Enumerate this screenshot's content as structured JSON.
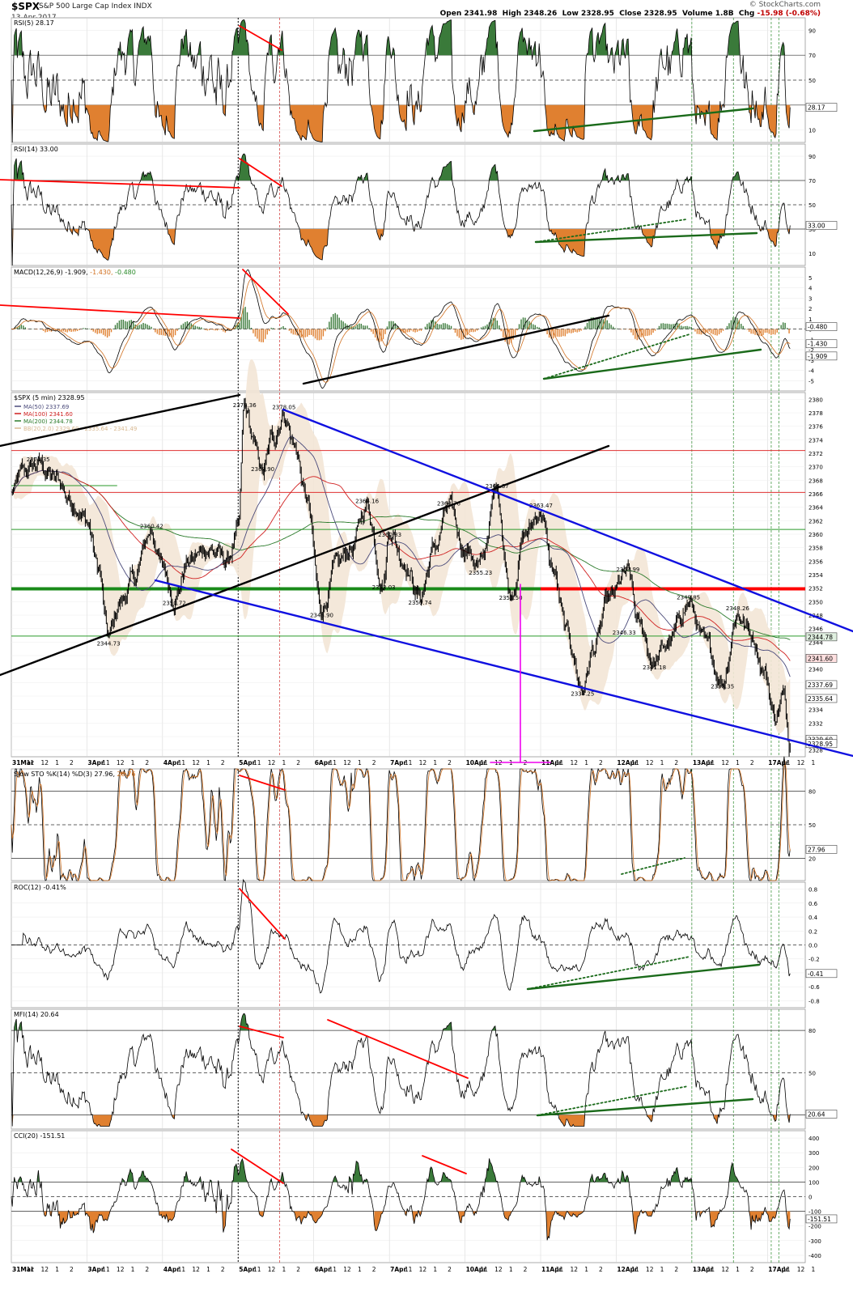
{
  "header": {
    "symbol": "$SPX",
    "name": "S&P 500 Large Cap Index  INDX",
    "date": "13-Apr-2017",
    "brand": "© StockCharts.com",
    "quote_open_label": "Open",
    "quote_open": "2341.98",
    "quote_high_label": "High",
    "quote_high": "2348.26",
    "quote_low_label": "Low",
    "quote_low": "2328.95",
    "quote_close_label": "Close",
    "quote_close": "2328.95",
    "quote_volume_label": "Volume",
    "quote_volume": "1.8B",
    "quote_chg_label": "Chg",
    "quote_chg": "-15.98 (-0.68%)"
  },
  "colors": {
    "price": "#000000",
    "ma50": "#4a4a7a",
    "ma100": "#d02020",
    "ma200": "#2a7a2a",
    "bb": "#d8b890",
    "trend_red": "#ff0000",
    "trend_green": "#1a6a1a",
    "trend_blue": "#1010e0",
    "trend_black": "#000000",
    "magenta": "#ee00ee",
    "fill_green": "#3a7a3a",
    "fill_orange": "#e08030"
  },
  "x_axis": {
    "price_panel_labels": [
      {
        "text": "31Mar",
        "bold": true
      },
      {
        "text": "11"
      },
      {
        "text": "12"
      },
      {
        "text": "1"
      },
      {
        "text": "2"
      },
      {
        "text": "3Apr",
        "bold": true
      },
      {
        "text": "11"
      },
      {
        "text": "12"
      },
      {
        "text": "1"
      },
      {
        "text": "2"
      },
      {
        "text": "4Apr",
        "bold": true
      },
      {
        "text": "11"
      },
      {
        "text": "12"
      },
      {
        "text": "1"
      },
      {
        "text": "2"
      },
      {
        "text": "5Apr",
        "bold": true
      },
      {
        "text": "11"
      },
      {
        "text": "12"
      },
      {
        "text": "1"
      },
      {
        "text": "2"
      },
      {
        "text": "6Apr",
        "bold": true
      },
      {
        "text": "11"
      },
      {
        "text": "12"
      },
      {
        "text": "1"
      },
      {
        "text": "2"
      },
      {
        "text": "7Apr",
        "bold": true
      },
      {
        "text": "11"
      },
      {
        "text": "12"
      },
      {
        "text": "1"
      },
      {
        "text": "2"
      },
      {
        "text": "10Apr",
        "bold": true
      },
      {
        "text": "11"
      },
      {
        "text": "12"
      },
      {
        "text": "1"
      },
      {
        "text": "2"
      },
      {
        "text": "11Apr",
        "bold": true
      },
      {
        "text": "11"
      },
      {
        "text": "12"
      },
      {
        "text": "1"
      },
      {
        "text": "2"
      },
      {
        "text": "12Apr",
        "bold": true
      },
      {
        "text": "11"
      },
      {
        "text": "12"
      },
      {
        "text": "1"
      },
      {
        "text": "2"
      },
      {
        "text": "13Apr",
        "bold": true
      },
      {
        "text": "11"
      },
      {
        "text": "12"
      },
      {
        "text": "1"
      },
      {
        "text": "2"
      },
      {
        "text": "17Apr",
        "bold": true
      },
      {
        "text": "11"
      },
      {
        "text": "12"
      },
      {
        "text": "1"
      }
    ]
  },
  "chart_data": [
    {
      "type": "line",
      "label": "RSI(5) 28.17",
      "ylim": [
        0,
        100
      ],
      "y_ticks": [
        10,
        30,
        50,
        70,
        90
      ],
      "levels": [
        30,
        50,
        70
      ],
      "value_tag": "28.17",
      "fill_thresholds": [
        70,
        30
      ],
      "last_value": 28.17
    },
    {
      "type": "line",
      "label": "RSI(14) 33.00",
      "ylim": [
        0,
        100
      ],
      "y_ticks": [
        10,
        30,
        50,
        70,
        90
      ],
      "levels": [
        30,
        50,
        70
      ],
      "value_tag": "33.00",
      "fill_thresholds": [
        70,
        30
      ],
      "last_value": 33.0
    },
    {
      "type": "line",
      "label_parts": [
        "MACD(12,26,9) -1.909,",
        " -1.430,",
        " -0.480"
      ],
      "ylim": [
        -6,
        6
      ],
      "y_ticks": [
        -5,
        -4,
        -3,
        -2,
        -1,
        0,
        1,
        2,
        3,
        4,
        5
      ],
      "levels": [
        0
      ],
      "value_tags": [
        "-0.480",
        "-1.430",
        "-1.909"
      ],
      "last_values": {
        "macd": -1.909,
        "signal": -1.43,
        "histogram": -0.48
      }
    },
    {
      "type": "line",
      "label": "$SPX (5 min) 2328.95",
      "legend": [
        {
          "name": "MA(50) 2337.69",
          "color": "#4a4a7a"
        },
        {
          "name": "MA(100) 2341.60",
          "color": "#d02020"
        },
        {
          "name": "MA(200) 2344.78",
          "color": "#2a7a2a"
        },
        {
          "name": "BB(20,2.0) 2329.60 - 2335.64 - 2341.49",
          "color": "#d8b890"
        }
      ],
      "ylim": [
        2327,
        2381
      ],
      "y_ticks": [
        2328,
        2330,
        2332,
        2334,
        2336,
        2338,
        2340,
        2342,
        2344,
        2346,
        2348,
        2350,
        2352,
        2354,
        2356,
        2358,
        2360,
        2362,
        2364,
        2366,
        2368,
        2370,
        2372,
        2374,
        2376,
        2378,
        2380
      ],
      "value_tags": [
        {
          "text": "2344.78",
          "value": 2344.78
        },
        {
          "text": "2341.60",
          "value": 2341.6
        },
        {
          "text": "2337.69",
          "value": 2337.69
        },
        {
          "text": "2335.64",
          "value": 2335.64
        },
        {
          "text": "2329.60",
          "value": 2329.6
        },
        {
          "text": "2328.95",
          "value": 2328.95
        }
      ],
      "point_labels": [
        {
          "text": "2370.35",
          "day": 0.35,
          "value": 2370.35
        },
        {
          "text": "2344.73",
          "day": 1.28,
          "value": 2344.73
        },
        {
          "text": "2360.42",
          "day": 1.85,
          "value": 2360.42
        },
        {
          "text": "2350.72",
          "day": 2.15,
          "value": 2350.72
        },
        {
          "text": "2378.36",
          "day": 3.08,
          "value": 2378.36
        },
        {
          "text": "2378.05",
          "day": 3.6,
          "value": 2378.05
        },
        {
          "text": "2368.90",
          "day": 3.32,
          "value": 2368.9
        },
        {
          "text": "2348.90",
          "day": 4.1,
          "value": 2348.9
        },
        {
          "text": "2364.16",
          "day": 4.7,
          "value": 2364.16
        },
        {
          "text": "2353.03",
          "day": 4.92,
          "value": 2353.03
        },
        {
          "text": "2360.83",
          "day": 5.0,
          "value": 2360.83
        },
        {
          "text": "2350.74",
          "day": 5.4,
          "value": 2350.74
        },
        {
          "text": "2363.76",
          "day": 5.78,
          "value": 2363.76
        },
        {
          "text": "2355.23",
          "day": 6.2,
          "value": 2355.23
        },
        {
          "text": "2366.37",
          "day": 6.42,
          "value": 2366.37
        },
        {
          "text": "2351.50",
          "day": 6.6,
          "value": 2351.5
        },
        {
          "text": "2363.47",
          "day": 7.0,
          "value": 2363.47
        },
        {
          "text": "2337.25",
          "day": 7.55,
          "value": 2337.25
        },
        {
          "text": "2353.99",
          "day": 8.15,
          "value": 2353.99
        },
        {
          "text": "2346.33",
          "day": 8.1,
          "value": 2346.33
        },
        {
          "text": "2341.18",
          "day": 8.5,
          "value": 2341.18
        },
        {
          "text": "2349.85",
          "day": 8.95,
          "value": 2349.85
        },
        {
          "text": "2338.35",
          "day": 9.4,
          "value": 2338.35
        },
        {
          "text": "2348.26",
          "day": 9.6,
          "value": 2348.26
        }
      ],
      "horizontal_levels": [
        {
          "value": 2372.4,
          "color": "#e03030",
          "width": 1
        },
        {
          "value": 2366.2,
          "color": "#e03030",
          "width": 1
        },
        {
          "value": 2360.7,
          "color": "#2a9a2a",
          "width": 1
        },
        {
          "value": 2351.9,
          "color": "#1a8a1a",
          "width": 4,
          "to_day": 7.0
        },
        {
          "value": 2351.9,
          "color": "#ff0000",
          "width": 4,
          "from_day": 7.0
        },
        {
          "value": 2344.9,
          "color": "#2a9a2a",
          "width": 1
        },
        {
          "value": 2367.2,
          "color": "#2a9a2a",
          "width": 1,
          "to_day": 1.4
        }
      ],
      "last_value": 2328.95
    },
    {
      "type": "line",
      "label_parts": [
        "Slow STO %K(14) %D(3) 27.96,",
        " 26.76"
      ],
      "ylim": [
        0,
        100
      ],
      "y_ticks": [
        20,
        50,
        80
      ],
      "levels": [
        20,
        50,
        80
      ],
      "value_tag": "27.96",
      "last_values": {
        "k": 27.96,
        "d": 26.76
      }
    },
    {
      "type": "line",
      "label": "ROC(12) -0.41%",
      "ylim": [
        -0.9,
        0.9
      ],
      "y_ticks": [
        -0.8,
        -0.6,
        -0.4,
        -0.2,
        0.0,
        0.2,
        0.4,
        0.6,
        0.8
      ],
      "y_tick_labels": [
        "-0.8",
        "-0.6",
        "-0.4",
        "-0.2",
        "0.0",
        "0.2",
        "0.4",
        "0.6",
        "0.8"
      ],
      "levels": [
        0
      ],
      "value_tag": "-0.41",
      "last_value": -0.41
    },
    {
      "type": "line",
      "label": "MFI(14) 20.64",
      "ylim": [
        10,
        95
      ],
      "y_ticks": [
        20,
        50,
        80
      ],
      "levels": [
        20,
        50,
        80
      ],
      "value_tag": "20.64",
      "fill_thresholds": [
        80,
        20
      ],
      "last_value": 20.64
    },
    {
      "type": "line",
      "label": "CCI(20) -151.51",
      "ylim": [
        -450,
        450
      ],
      "y_ticks": [
        -400,
        -300,
        -200,
        -100,
        0,
        100,
        200,
        300,
        400
      ],
      "levels": [
        -100,
        0,
        100
      ],
      "value_tag": "-151.51",
      "fill_thresholds": [
        100,
        -100
      ],
      "last_value": -151.51
    }
  ]
}
